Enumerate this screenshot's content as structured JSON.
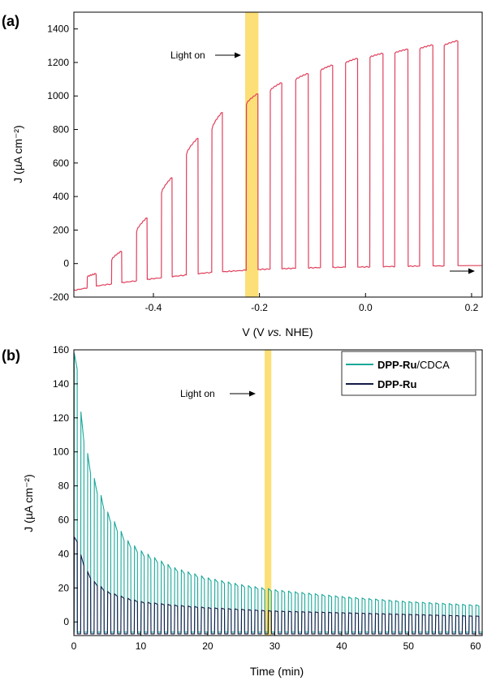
{
  "colors": {
    "trace_a": "#e0405c",
    "cdca": "#1aa899",
    "dpp": "#141b48",
    "highlight": "#fce077",
    "axis": "#000000"
  },
  "chart_data": [
    {
      "type": "line",
      "panel_label": "(a)",
      "xlabel_prefix": "V (V ",
      "xlabel_italic": "vs.",
      "xlabel_suffix": " NHE)",
      "ylabel": "J (µA cm⁻²)",
      "xlim": [
        -0.55,
        0.22
      ],
      "ylim": [
        -200,
        1500
      ],
      "xticks": [
        -0.4,
        -0.2,
        0.0,
        0.2
      ],
      "xtick_labels": [
        "-0.4",
        "-0.2",
        "0.0",
        "0.2"
      ],
      "yticks": [
        -200,
        0,
        200,
        400,
        600,
        800,
        1000,
        1200,
        1400
      ],
      "ytick_labels": [
        "-200",
        "0",
        "200",
        "400",
        "600",
        "800",
        "1000",
        "1200",
        "1400"
      ],
      "annotation": "Light on",
      "highlight_x": [
        -0.227,
        -0.202
      ],
      "dark_current": {
        "x": [
          -0.55,
          -0.5,
          -0.45,
          -0.4,
          -0.3,
          -0.2,
          -0.1,
          0.0,
          0.1,
          0.2,
          0.22
        ],
        "y": [
          -160,
          -130,
          -110,
          -90,
          -55,
          -35,
          -25,
          -20,
          -15,
          -12,
          -12
        ]
      },
      "light_pulses": [
        {
          "x_start": -0.525,
          "x_end": -0.508,
          "y_start": -80,
          "y_end": -60
        },
        {
          "x_start": -0.479,
          "x_end": -0.46,
          "y_start": 20,
          "y_end": 75
        },
        {
          "x_start": -0.432,
          "x_end": -0.412,
          "y_start": 190,
          "y_end": 275
        },
        {
          "x_start": -0.385,
          "x_end": -0.365,
          "y_start": 420,
          "y_end": 515
        },
        {
          "x_start": -0.338,
          "x_end": -0.316,
          "y_start": 650,
          "y_end": 750
        },
        {
          "x_start": -0.29,
          "x_end": -0.27,
          "y_start": 800,
          "y_end": 905
        },
        {
          "x_start": -0.225,
          "x_end": -0.203,
          "y_start": 950,
          "y_end": 1015
        },
        {
          "x_start": -0.18,
          "x_end": -0.158,
          "y_start": 1030,
          "y_end": 1080
        },
        {
          "x_start": -0.132,
          "x_end": -0.108,
          "y_start": 1095,
          "y_end": 1135
        },
        {
          "x_start": -0.085,
          "x_end": -0.062,
          "y_start": 1150,
          "y_end": 1185
        },
        {
          "x_start": -0.038,
          "x_end": -0.015,
          "y_start": 1195,
          "y_end": 1225
        },
        {
          "x_start": 0.008,
          "x_end": 0.033,
          "y_start": 1230,
          "y_end": 1255
        },
        {
          "x_start": 0.055,
          "x_end": 0.08,
          "y_start": 1255,
          "y_end": 1280
        },
        {
          "x_start": 0.102,
          "x_end": 0.127,
          "y_start": 1280,
          "y_end": 1305
        },
        {
          "x_start": 0.148,
          "x_end": 0.174,
          "y_start": 1300,
          "y_end": 1330
        }
      ]
    },
    {
      "type": "line",
      "panel_label": "(b)",
      "xlabel": "Time (min)",
      "ylabel": "J (µA cm⁻²)",
      "xlim": [
        0,
        61
      ],
      "ylim": [
        -8,
        160
      ],
      "xticks": [
        0,
        10,
        20,
        30,
        40,
        50,
        60
      ],
      "xtick_labels": [
        "0",
        "10",
        "20",
        "30",
        "40",
        "50",
        "60"
      ],
      "yticks": [
        0,
        20,
        40,
        60,
        80,
        100,
        120,
        140,
        160
      ],
      "ytick_labels": [
        "0",
        "20",
        "40",
        "60",
        "80",
        "100",
        "120",
        "140",
        "160"
      ],
      "annotation": "Light on",
      "highlight_x": [
        28.5,
        29.5
      ],
      "pulse_period_min": 1,
      "series": [
        {
          "bold_name": "DPP-Ru",
          "name_suffix": "/CDCA",
          "peak_envelope": {
            "x": [
              0.5,
              1,
              2,
              3,
              5,
              8,
              10,
              15,
              20,
              25,
              30,
              35,
              40,
              45,
              50,
              55,
              60
            ],
            "y": [
              158,
              125,
              100,
              85,
              65,
              48,
              42,
              32,
              26,
              22,
              19,
              17,
              15,
              13.5,
              12,
              11,
              10
            ]
          },
          "dark_level": -6
        },
        {
          "bold_name": "DPP-Ru",
          "name_suffix": "",
          "peak_envelope": {
            "x": [
              0.5,
              1,
              2,
              3,
              5,
              8,
              10,
              15,
              20,
              25,
              30,
              35,
              40,
              45,
              50,
              55,
              60
            ],
            "y": [
              50,
              40,
              30,
              24,
              18,
              14,
              12,
              10,
              8.5,
              7.5,
              6.5,
              6,
              5.5,
              5,
              4.5,
              4,
              3.5
            ]
          },
          "dark_level": -7
        }
      ]
    }
  ]
}
